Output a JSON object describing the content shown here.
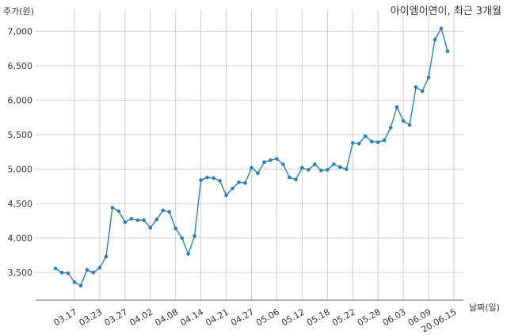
{
  "chart_data": {
    "type": "line",
    "title": "아이엠이연이, 최근 3개월",
    "ylabel": "주가(원)",
    "xlabel": "날짜(일)",
    "ylim": [
      3100,
      7200
    ],
    "y_ticks": [
      3500,
      4000,
      4500,
      5000,
      5500,
      6000,
      6500,
      7000
    ],
    "y_tick_labels": [
      "3,500",
      "4,000",
      "4,500",
      "5,000",
      "5,500",
      "6,000",
      "6,500",
      "7,000"
    ],
    "x_tick_labels": [
      "03.17",
      "03.23",
      "03.27",
      "04.02",
      "04.08",
      "04.14",
      "04.21",
      "04.27",
      "05.06",
      "05.12",
      "05.18",
      "05.22",
      "05.28",
      "06.03",
      "06.09",
      "20.06.15"
    ],
    "x_tick_index": [
      3,
      7,
      11,
      15,
      19,
      23,
      27,
      31,
      35,
      39,
      43,
      47,
      51,
      55,
      59,
      63
    ],
    "grid": true,
    "series": [
      {
        "color": "#2e7db6",
        "values": [
          3560,
          3500,
          3490,
          3360,
          3310,
          3540,
          3500,
          3570,
          3730,
          4440,
          4390,
          4230,
          4280,
          4260,
          4260,
          4150,
          4270,
          4400,
          4380,
          4140,
          4000,
          3770,
          4030,
          4840,
          4880,
          4870,
          4830,
          4620,
          4720,
          4810,
          4800,
          5020,
          4940,
          5100,
          5130,
          5150,
          5070,
          4880,
          4850,
          5020,
          4990,
          5070,
          4980,
          4990,
          5070,
          5030,
          5000,
          5380,
          5370,
          5480,
          5400,
          5390,
          5420,
          5600,
          5900,
          5700,
          5640,
          6190,
          6130,
          6330,
          6880,
          7040,
          6710
        ]
      }
    ]
  }
}
